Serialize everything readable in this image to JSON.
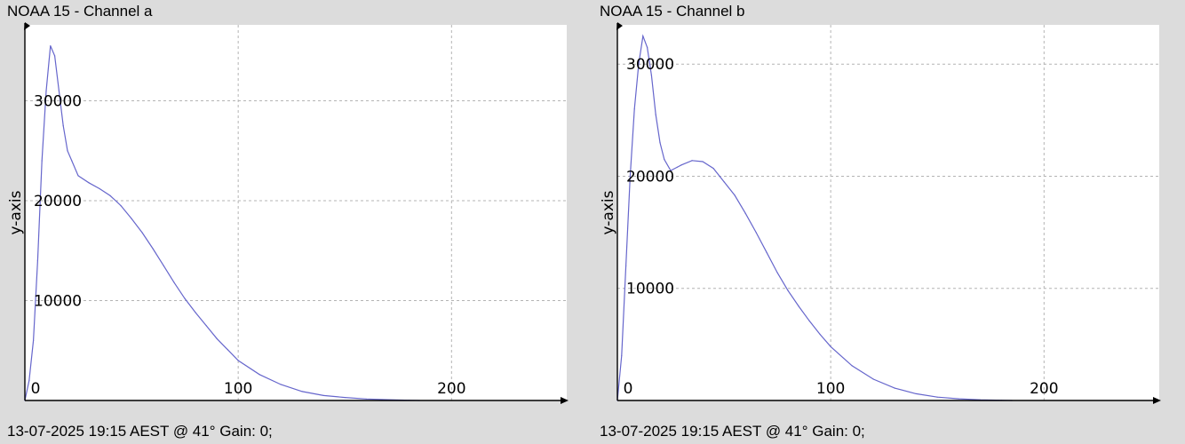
{
  "chart_data": [
    {
      "type": "line",
      "title": "NOAA 15 - Channel a",
      "ylabel": "y-axis",
      "xlabel": "",
      "footer": "13-07-2025 19:15 AEST @ 41° Gain: 0;",
      "xlim": [
        0,
        254
      ],
      "ylim": [
        0,
        37600
      ],
      "xticks": [
        0,
        100,
        200
      ],
      "yticks": [
        10000,
        20000,
        30000
      ],
      "xtick_labels": [
        "0",
        "100",
        "200"
      ],
      "ytick_labels": [
        "10000",
        "20000",
        "30000"
      ],
      "grid": true,
      "line_color": "#6666cc",
      "x": [
        0,
        2,
        4,
        6,
        8,
        10,
        12,
        14,
        16,
        18,
        20,
        22,
        25,
        30,
        35,
        40,
        45,
        50,
        55,
        60,
        65,
        70,
        75,
        80,
        85,
        90,
        95,
        100,
        110,
        120,
        130,
        140,
        150,
        160,
        170,
        180,
        185
      ],
      "values": [
        0,
        2000,
        6000,
        14000,
        24000,
        31000,
        35500,
        34500,
        31000,
        27500,
        25000,
        24000,
        22500,
        21800,
        21200,
        20500,
        19500,
        18200,
        16800,
        15200,
        13500,
        11800,
        10200,
        8800,
        7500,
        6200,
        5100,
        4000,
        2600,
        1600,
        900,
        500,
        300,
        150,
        80,
        30,
        0
      ]
    },
    {
      "type": "line",
      "title": "NOAA 15 - Channel b",
      "ylabel": "y-axis",
      "xlabel": "",
      "footer": "13-07-2025 19:15 AEST @ 41° Gain: 0;",
      "xlim": [
        0,
        254
      ],
      "ylim": [
        0,
        33500
      ],
      "xticks": [
        0,
        100,
        200
      ],
      "yticks": [
        10000,
        20000,
        30000
      ],
      "xtick_labels": [
        "0",
        "100",
        "200"
      ],
      "ytick_labels": [
        "10000",
        "20000",
        "30000"
      ],
      "grid": true,
      "line_color": "#6666cc",
      "x": [
        0,
        2,
        4,
        6,
        8,
        10,
        12,
        14,
        16,
        18,
        20,
        22,
        25,
        28,
        30,
        35,
        40,
        45,
        50,
        55,
        60,
        65,
        70,
        75,
        80,
        85,
        90,
        95,
        100,
        110,
        120,
        130,
        140,
        150,
        160,
        170,
        180,
        185
      ],
      "values": [
        0,
        4000,
        12000,
        20000,
        26000,
        30000,
        32500,
        31500,
        29000,
        25500,
        23000,
        21500,
        20500,
        20800,
        21000,
        21400,
        21300,
        20700,
        19500,
        18300,
        16700,
        15000,
        13200,
        11400,
        9800,
        8400,
        7100,
        5900,
        4800,
        3100,
        1900,
        1100,
        600,
        300,
        150,
        60,
        20,
        0
      ]
    }
  ]
}
